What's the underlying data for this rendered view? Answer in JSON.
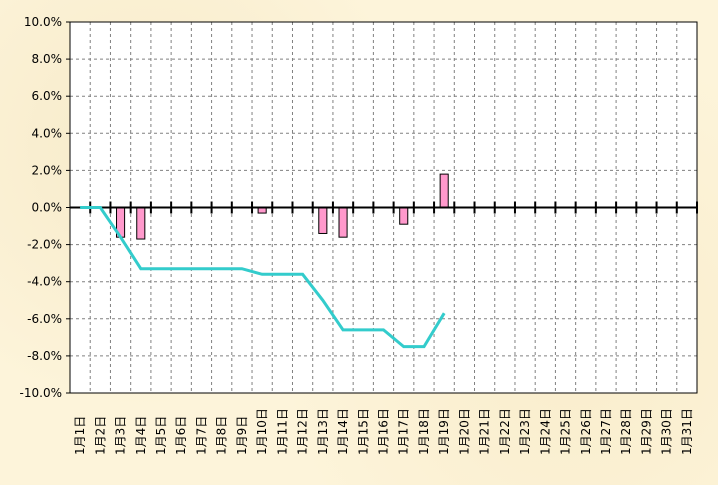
{
  "chart_data": {
    "type": "bar+line",
    "title": "",
    "xlabel": "",
    "ylabel": "",
    "ylim": [
      -10,
      10
    ],
    "y_ticks": [
      "10.0%",
      "8.0%",
      "6.0%",
      "4.0%",
      "2.0%",
      "0.0%",
      "-2.0%",
      "-4.0%",
      "-6.0%",
      "-8.0%",
      "-10.0%"
    ],
    "grid": true,
    "categories": [
      "1月1日",
      "1月2日",
      "1月3日",
      "1月4日",
      "1月5日",
      "1月6日",
      "1月7日",
      "1月8日",
      "1月9日",
      "1月10日",
      "1月11日",
      "1月12日",
      "1月13日",
      "1月14日",
      "1月15日",
      "1月16日",
      "1月17日",
      "1月18日",
      "1月19日",
      "1月20日",
      "1月21日",
      "1月22日",
      "1月23日",
      "1月24日",
      "1月25日",
      "1月26日",
      "1月27日",
      "1月28日",
      "1月29日",
      "1月30日",
      "1月31日"
    ],
    "series": [
      {
        "type": "bar",
        "color": "#ff99cc",
        "values": [
          0,
          0,
          -1.6,
          -1.7,
          0,
          0,
          0,
          0,
          0,
          -0.3,
          0,
          0,
          -1.4,
          -1.6,
          0,
          0,
          -0.9,
          0,
          1.8,
          null,
          null,
          null,
          null,
          null,
          null,
          null,
          null,
          null,
          null,
          null,
          null
        ]
      },
      {
        "type": "line",
        "color": "#33cccc",
        "values": [
          0,
          0,
          -1.6,
          -3.3,
          -3.3,
          -3.3,
          -3.3,
          -3.3,
          -3.3,
          -3.6,
          -3.6,
          -3.6,
          -5.0,
          -6.6,
          -6.6,
          -6.6,
          -7.5,
          -7.5,
          -5.7,
          null,
          null,
          null,
          null,
          null,
          null,
          null,
          null,
          null,
          null,
          null,
          null
        ]
      }
    ]
  }
}
